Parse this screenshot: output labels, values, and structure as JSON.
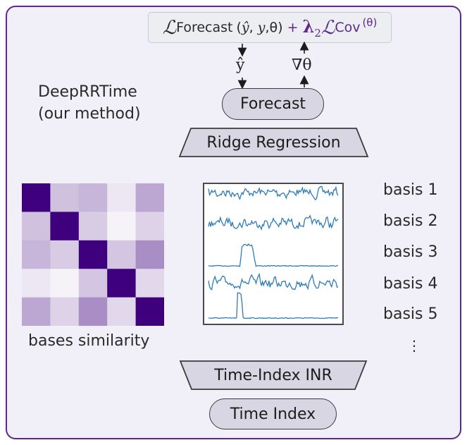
{
  "method_name": "DeepRRTime",
  "method_note": "(our method)",
  "loss": {
    "forecast_symbol": "ℒ",
    "forecast_sub": "Forecast",
    "forecast_args_open": "(",
    "forecast_yhat": "ŷ",
    "forecast_sep1": ", ",
    "forecast_y": "y",
    "forecast_sep2": ",θ)",
    "plus": "+",
    "lambda": "λ",
    "lambda_sub": "2",
    "cov_symbol": "ℒ",
    "cov_sub": "Cov",
    "cov_args": "(θ)"
  },
  "yhat_label": "ŷ",
  "grad_label": "∇θ",
  "forecast_node": "Forecast",
  "ridge_node": "Ridge Regression",
  "inr_node": "Time-Index INR",
  "time_index_node": "Time Index",
  "similarity_caption": "bases similarity",
  "basis_labels": [
    "basis 1",
    "basis 2",
    "basis 3",
    "basis 4",
    "basis 5"
  ],
  "more_label": "⋮",
  "similarity_matrix": [
    [
      1.0,
      0.18,
      0.22,
      0.05,
      0.28
    ],
    [
      0.18,
      1.0,
      0.14,
      0.02,
      0.12
    ],
    [
      0.22,
      0.14,
      1.0,
      0.16,
      0.38
    ],
    [
      0.05,
      0.02,
      0.16,
      1.0,
      0.1
    ],
    [
      0.28,
      0.12,
      0.38,
      0.1,
      1.0
    ]
  ],
  "colors": {
    "frame": "#5b2a8c",
    "accent": "#5b2a8c",
    "heatmap_high": "#3f007d",
    "heatmap_low": "#fcfbfd",
    "signal_line": "#2f7bb6",
    "node_fill": "#d9d6e3"
  }
}
